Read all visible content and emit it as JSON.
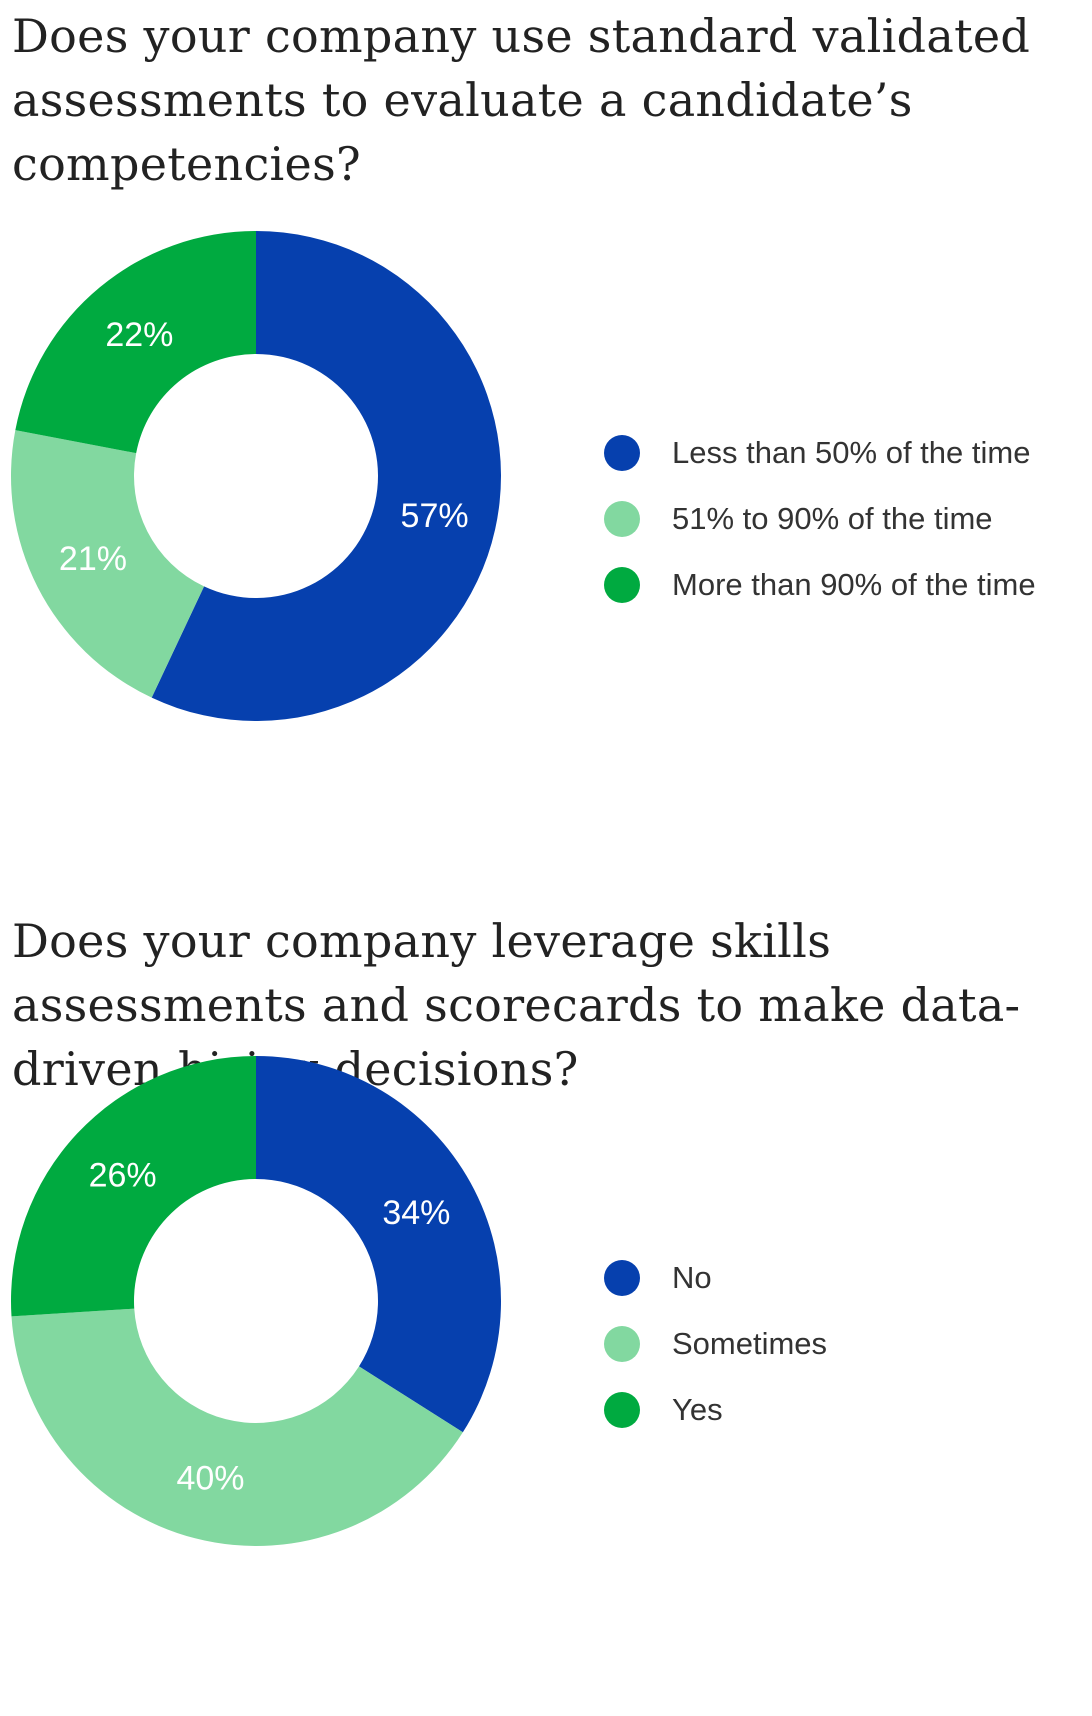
{
  "chart_data": [
    {
      "type": "pie",
      "title": "Does your company use standard validated assessments to evaluate a candidate’s competencies?",
      "slices": [
        {
          "label": "Less than 50% of the time",
          "value": 57,
          "value_label": "57%",
          "color": "#0640AE"
        },
        {
          "label": "51% to 90% of the time",
          "value": 21,
          "value_label": "21%",
          "color": "#82D8A0"
        },
        {
          "label": "More than 90% of the time",
          "value": 22,
          "value_label": "22%",
          "color": "#00AA40"
        }
      ],
      "legend_position": "right"
    },
    {
      "type": "pie",
      "title": "Does your company leverage skills assessments and scorecards to make data-driven hiring decisions?",
      "slices": [
        {
          "label": "No",
          "value": 34,
          "value_label": "34%",
          "color": "#0640AE"
        },
        {
          "label": "Sometimes",
          "value": 40,
          "value_label": "40%",
          "color": "#82D8A0"
        },
        {
          "label": "Yes",
          "value": 26,
          "value_label": "26%",
          "color": "#00AA40"
        }
      ],
      "legend_position": "right"
    }
  ]
}
